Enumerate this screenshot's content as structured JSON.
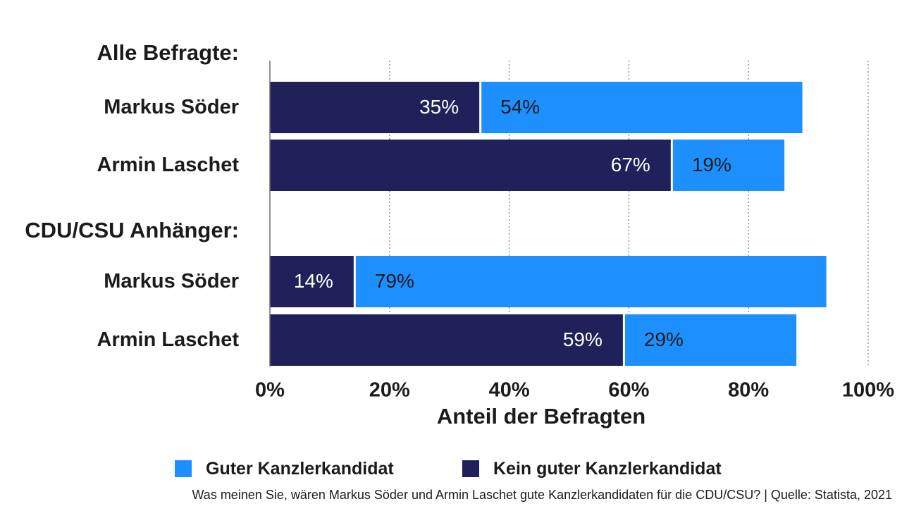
{
  "chart_data": {
    "type": "bar",
    "orientation": "horizontal",
    "stacked": true,
    "groups": [
      {
        "label": "Alle Befragte:",
        "categories": [
          "Markus Söder",
          "Armin Laschet"
        ]
      },
      {
        "label": "CDU/CSU Anhänger:",
        "categories": [
          "Markus Söder",
          "Armin Laschet"
        ]
      }
    ],
    "series": [
      {
        "name": "Kein guter Kanzlerkandidat",
        "color": "#20215a",
        "values": [
          35,
          67,
          14,
          59
        ],
        "labels": [
          "35%",
          "67%",
          "14%",
          "59%"
        ]
      },
      {
        "name": "Guter Kanzlerkandidat",
        "color": "#1e8fff",
        "values": [
          54,
          19,
          79,
          29
        ],
        "labels": [
          "54%",
          "19%",
          "79%",
          "29%"
        ]
      }
    ],
    "xlabel": "Anteil der Befragten",
    "xlim": [
      0,
      100
    ],
    "xticks": [
      "0%",
      "20%",
      "40%",
      "60%",
      "80%",
      "100%"
    ],
    "grid": "vertical dotted",
    "legend_position": "bottom",
    "legend": [
      {
        "label": "Guter Kanzlerkandidat",
        "color": "#1e8fff"
      },
      {
        "label": "Kein guter Kanzlerkandidat",
        "color": "#20215a"
      }
    ]
  },
  "footnote": "Was meinen Sie, wären Markus Söder und Armin Laschet gute Kanzlerkandidaten für die CDU/CSU? | Quelle: Statista, 2021"
}
